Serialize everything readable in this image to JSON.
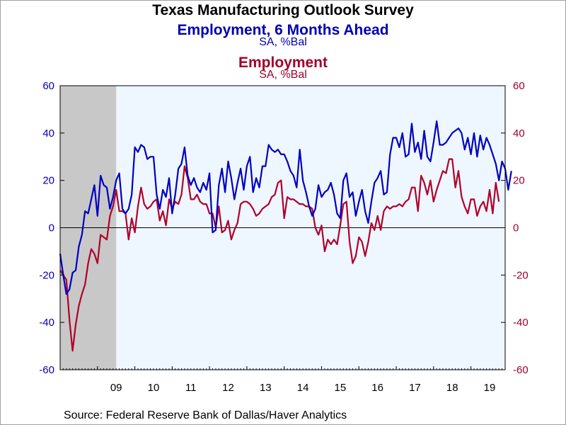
{
  "chart_data": {
    "type": "line",
    "title": "Texas Manufacturing Outlook Survey",
    "x_tick_labels": [
      "09",
      "10",
      "11",
      "12",
      "13",
      "14",
      "15",
      "16",
      "17",
      "18",
      "19"
    ],
    "x_range": [
      2008.0,
      2019.9167
    ],
    "recession_shading": [
      2008.0,
      2009.5
    ],
    "left_axis": {
      "range": [
        -60,
        60
      ],
      "ticks": [
        -60,
        -40,
        -20,
        0,
        20,
        40,
        60
      ],
      "color": "#0000b0"
    },
    "right_axis": {
      "range": [
        -60,
        60
      ],
      "ticks": [
        -60,
        -40,
        -20,
        0,
        20,
        40,
        60
      ],
      "color": "#a0002a"
    },
    "zero_line": 0,
    "series": [
      {
        "name": "Employment, 6 Months Ahead",
        "subtitle": "SA, %Bal",
        "axis": "left",
        "color": "#0000c0",
        "values": [
          -11,
          -20,
          -28,
          -26,
          -19,
          -18,
          -8,
          -3,
          7,
          6,
          12,
          18,
          5,
          22,
          18,
          17,
          8,
          13,
          20,
          23,
          8,
          6,
          8,
          14,
          34,
          32,
          35,
          34,
          29,
          30,
          30,
          14,
          8,
          16,
          13,
          21,
          6,
          14,
          25,
          27,
          34,
          22,
          18,
          21,
          17,
          15,
          19,
          16,
          23,
          -2,
          -1,
          18,
          25,
          15,
          28,
          21,
          12,
          19,
          25,
          16,
          26,
          30,
          15,
          21,
          17,
          26,
          26,
          35,
          33,
          32,
          33,
          31,
          31,
          28,
          24,
          22,
          17,
          33,
          20,
          15,
          9,
          5,
          8,
          18,
          13,
          15,
          16,
          19,
          14,
          6,
          4,
          20,
          23,
          13,
          15,
          5,
          11,
          16,
          7,
          2,
          11,
          19,
          21,
          24,
          14,
          15,
          31,
          38,
          38,
          34,
          40,
          30,
          31,
          44,
          32,
          36,
          29,
          41,
          30,
          28,
          36,
          45,
          35,
          35,
          36,
          38,
          40,
          41,
          42,
          40,
          33,
          38,
          31,
          40,
          30,
          39,
          33,
          38,
          35,
          31,
          27,
          20,
          28,
          25,
          16,
          24
        ]
      },
      {
        "name": "Employment",
        "subtitle": "SA, %Bal",
        "axis": "right",
        "color": "#b0002a",
        "values": [
          -18,
          -20,
          -22,
          -39,
          -52,
          -41,
          -33,
          -28,
          -24,
          -15,
          -9,
          -11,
          -15,
          -3,
          -4,
          -5,
          5,
          9,
          16,
          7,
          7,
          6,
          -5,
          4,
          -2,
          9,
          17,
          10,
          8,
          9,
          11,
          12,
          3,
          7,
          1,
          12,
          8,
          11,
          10,
          14,
          26,
          21,
          12,
          12,
          14,
          11,
          10,
          10,
          6,
          6,
          0,
          9,
          -2,
          -1,
          3,
          -5,
          -1,
          2,
          10,
          11,
          11,
          10,
          8,
          5,
          6,
          8,
          9,
          10,
          13,
          14,
          19,
          20,
          4,
          13,
          12,
          12,
          11,
          10,
          10,
          9,
          9,
          8,
          0,
          -3,
          1,
          -10,
          -5,
          -7,
          -5,
          -7,
          1,
          10,
          11,
          -6,
          -15,
          -12,
          -4,
          -6,
          -12,
          -6,
          2,
          -1,
          5,
          -1,
          7,
          9,
          8,
          9,
          9,
          10,
          9,
          11,
          12,
          17,
          17,
          7,
          22,
          19,
          14,
          20,
          11,
          16,
          20,
          24,
          23,
          29,
          29,
          17,
          24,
          13,
          9,
          6,
          12,
          12,
          5,
          9,
          11,
          7,
          16,
          6,
          19,
          11
        ]
      }
    ]
  },
  "source": "Source:  Federal Reserve Bank of Dallas/Haver Analytics"
}
